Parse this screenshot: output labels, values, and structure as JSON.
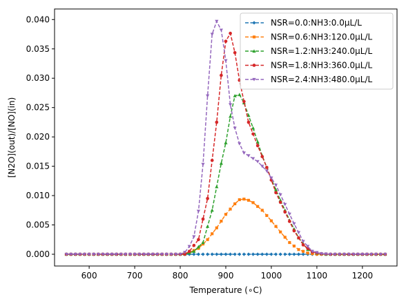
{
  "chart_data": {
    "type": "line",
    "title": "",
    "xlabel": "Temperature (∘C)",
    "ylabel": "[N2O](out)/[NO](in)",
    "xlim": [
      524,
      1276
    ],
    "ylim": [
      -0.002,
      0.0418
    ],
    "xticks": [
      600,
      700,
      800,
      900,
      1000,
      1100,
      1200
    ],
    "yticks": [
      0.0,
      0.005,
      0.01,
      0.015,
      0.02,
      0.025,
      0.03,
      0.035,
      0.04
    ],
    "ytick_labels": [
      "0.000",
      "0.005",
      "0.010",
      "0.015",
      "0.020",
      "0.025",
      "0.030",
      "0.035",
      "0.040"
    ],
    "grid": false,
    "legend_position": "top-right",
    "x_range": {
      "start": 550,
      "end": 1250,
      "step": 10
    },
    "series": [
      {
        "name": "NSR=0.0:NH3:0.0μL/L",
        "color": "#1f77b4",
        "marker": "diamond",
        "points": [
          [
            550,
            0.0
          ],
          [
            1250,
            0.0
          ]
        ]
      },
      {
        "name": "NSR=0.6:NH3:120.0μL/L",
        "color": "#ff7f0e",
        "marker": "square",
        "points": [
          [
            550,
            0.0
          ],
          [
            800,
            0.0
          ],
          [
            820,
            0.0003
          ],
          [
            840,
            0.001
          ],
          [
            860,
            0.0025
          ],
          [
            880,
            0.0045
          ],
          [
            900,
            0.0068
          ],
          [
            920,
            0.0086
          ],
          [
            930,
            0.0093
          ],
          [
            940,
            0.0094
          ],
          [
            950,
            0.0092
          ],
          [
            960,
            0.0088
          ],
          [
            980,
            0.0075
          ],
          [
            1000,
            0.0057
          ],
          [
            1020,
            0.0038
          ],
          [
            1040,
            0.002
          ],
          [
            1060,
            0.0008
          ],
          [
            1080,
            0.0002
          ],
          [
            1100,
            0.0
          ],
          [
            1250,
            0.0
          ]
        ]
      },
      {
        "name": "NSR=1.2:NH3:240.0μL/L",
        "color": "#2ca02c",
        "marker": "triangle",
        "points": [
          [
            550,
            0.0
          ],
          [
            810,
            0.0
          ],
          [
            830,
            0.0005
          ],
          [
            850,
            0.002
          ],
          [
            870,
            0.0075
          ],
          [
            890,
            0.0155
          ],
          [
            900,
            0.019
          ],
          [
            910,
            0.0235
          ],
          [
            920,
            0.027
          ],
          [
            930,
            0.0272
          ],
          [
            940,
            0.0258
          ],
          [
            960,
            0.0215
          ],
          [
            980,
            0.0168
          ],
          [
            1000,
            0.0128
          ],
          [
            1020,
            0.0092
          ],
          [
            1040,
            0.0058
          ],
          [
            1060,
            0.0028
          ],
          [
            1080,
            0.0008
          ],
          [
            1100,
            0.0002
          ],
          [
            1120,
            0.0
          ],
          [
            1250,
            0.0
          ]
        ]
      },
      {
        "name": "NSR=1.8:NH3:360.0μL/L",
        "color": "#d62728",
        "marker": "hexagon",
        "points": [
          [
            550,
            0.0
          ],
          [
            810,
            0.0
          ],
          [
            820,
            0.0005
          ],
          [
            840,
            0.0025
          ],
          [
            860,
            0.0095
          ],
          [
            880,
            0.0225
          ],
          [
            895,
            0.0345
          ],
          [
            905,
            0.0381
          ],
          [
            915,
            0.0372
          ],
          [
            925,
            0.0315
          ],
          [
            935,
            0.0278
          ],
          [
            950,
            0.0225
          ],
          [
            970,
            0.0185
          ],
          [
            990,
            0.0148
          ],
          [
            1010,
            0.0105
          ],
          [
            1030,
            0.0072
          ],
          [
            1050,
            0.004
          ],
          [
            1070,
            0.0016
          ],
          [
            1090,
            0.0004
          ],
          [
            1110,
            0.0001
          ],
          [
            1130,
            0.0
          ],
          [
            1250,
            0.0
          ]
        ]
      },
      {
        "name": "NSR=2.4:NH3:480.0μL/L",
        "color": "#9467bd",
        "marker": "triangle_down",
        "points": [
          [
            550,
            0.0
          ],
          [
            800,
            0.0
          ],
          [
            815,
            0.0005
          ],
          [
            830,
            0.003
          ],
          [
            845,
            0.0095
          ],
          [
            860,
            0.027
          ],
          [
            870,
            0.0375
          ],
          [
            880,
            0.0397
          ],
          [
            890,
            0.0382
          ],
          [
            900,
            0.033
          ],
          [
            910,
            0.0255
          ],
          [
            920,
            0.0215
          ],
          [
            935,
            0.0175
          ],
          [
            950,
            0.0168
          ],
          [
            970,
            0.0158
          ],
          [
            990,
            0.0142
          ],
          [
            1010,
            0.0118
          ],
          [
            1030,
            0.0085
          ],
          [
            1050,
            0.0052
          ],
          [
            1070,
            0.0022
          ],
          [
            1090,
            0.0005
          ],
          [
            1110,
            0.0001
          ],
          [
            1130,
            0.0
          ],
          [
            1250,
            0.0
          ]
        ]
      }
    ]
  }
}
